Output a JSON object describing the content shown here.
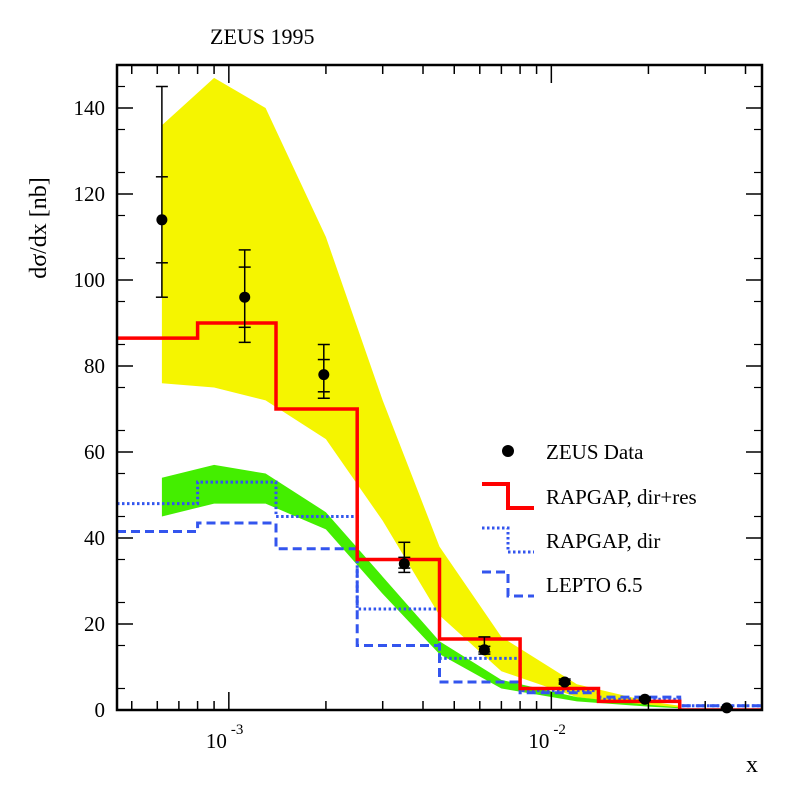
{
  "chart_data": {
    "type": "line",
    "title": "ZEUS 1995",
    "xlabel": "x",
    "ylabel": "dσ/dx [nb]",
    "x_scale": "log",
    "xlim": [
      0.00045,
      0.045
    ],
    "ylim": [
      0,
      150
    ],
    "x_ticks": [
      {
        "value": 0.001,
        "base": "10",
        "exp": "-3"
      },
      {
        "value": 0.01,
        "base": "10",
        "exp": "-2"
      }
    ],
    "y_ticks": [
      0,
      20,
      40,
      60,
      80,
      100,
      120,
      140
    ],
    "legend": {
      "position": "center-right",
      "entries": [
        {
          "label": "ZEUS Data",
          "style": "marker"
        },
        {
          "label": "RAPGAP, dir+res",
          "style": "solid-red"
        },
        {
          "label": "RAPGAP, dir",
          "style": "dotted-blue"
        },
        {
          "label": "LEPTO 6.5",
          "style": "dashed-blue"
        }
      ]
    },
    "data_points": {
      "name": "ZEUS Data",
      "x": [
        0.00062,
        0.00112,
        0.00197,
        0.0035,
        0.0062,
        0.011,
        0.0195,
        0.035
      ],
      "y": [
        114,
        96,
        78,
        34,
        14,
        6.5,
        2.5,
        0.5
      ],
      "stat_lo": [
        104,
        89,
        74,
        33,
        13.5,
        6.3,
        2.4,
        0.5
      ],
      "stat_hi": [
        124,
        103,
        81.5,
        35.5,
        14.8,
        6.8,
        2.7,
        0.6
      ],
      "tot_lo": [
        96,
        85.5,
        72.5,
        32,
        13,
        6,
        2.2,
        0.4
      ],
      "tot_hi": [
        145,
        107,
        85,
        39,
        17,
        7.2,
        3,
        0.7
      ]
    },
    "series": [
      {
        "name": "RAPGAP, dir+res",
        "color": "#ff0000",
        "dash": "solid",
        "edges": [
          0.00045,
          0.0008,
          0.0014,
          0.0025,
          0.0045,
          0.008,
          0.014,
          0.025
        ],
        "values": [
          86.5,
          90,
          70,
          35,
          16.5,
          5,
          2,
          0
        ]
      },
      {
        "name": "RAPGAP, dir",
        "color": "#3355ee",
        "dash": "dotted",
        "edges": [
          0.00045,
          0.0008,
          0.0014,
          0.0025,
          0.0045,
          0.008,
          0.014,
          0.025,
          0.045
        ],
        "values": [
          48,
          53,
          45,
          23.5,
          12,
          4.5,
          2.5,
          1
        ]
      },
      {
        "name": "LEPTO 6.5",
        "color": "#3355ee",
        "dash": "dashed",
        "edges": [
          0.00045,
          0.0008,
          0.0014,
          0.0025,
          0.0045,
          0.008,
          0.014,
          0.025,
          0.045
        ],
        "values": [
          41.5,
          43.5,
          37.5,
          15,
          6.5,
          4,
          3,
          1
        ]
      }
    ],
    "bands": [
      {
        "name": "yellow band",
        "color": "#f5f500",
        "x": [
          0.00062,
          0.0009,
          0.0013,
          0.002,
          0.003,
          0.0045,
          0.007,
          0.012,
          0.02,
          0.025
        ],
        "lo": [
          76,
          75,
          72,
          63,
          44,
          22,
          9,
          3,
          1,
          0.5
        ],
        "hi": [
          136,
          147,
          140,
          110,
          72,
          38,
          17,
          6,
          2,
          1
        ]
      },
      {
        "name": "green band",
        "color": "#44ee00",
        "x": [
          0.00062,
          0.0009,
          0.0013,
          0.002,
          0.003,
          0.0045,
          0.007,
          0.012,
          0.02,
          0.025
        ],
        "lo": [
          45,
          48,
          48,
          42,
          27,
          13,
          5,
          2,
          0.8,
          0.4
        ],
        "hi": [
          54,
          57,
          55,
          46,
          31,
          16,
          7,
          3,
          1.2,
          0.6
        ]
      }
    ]
  }
}
